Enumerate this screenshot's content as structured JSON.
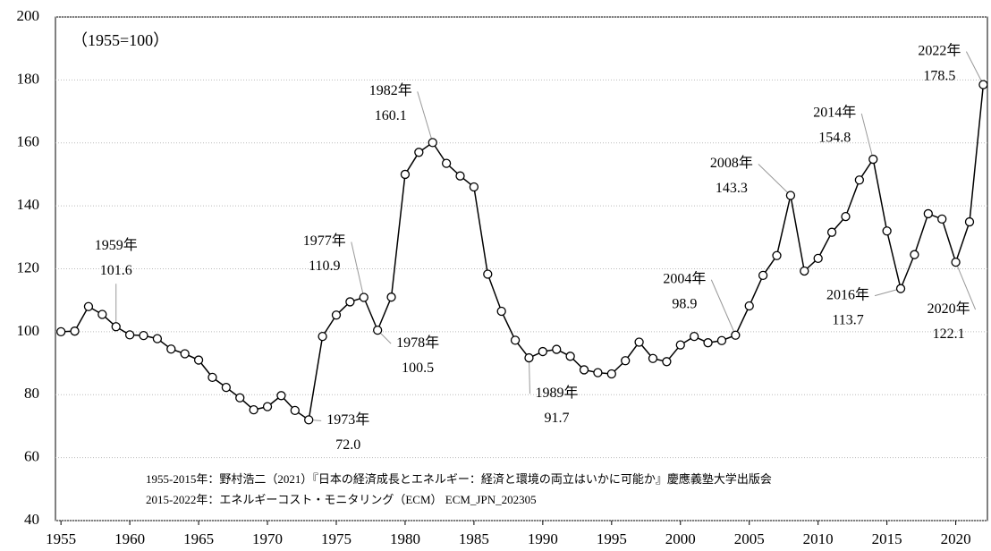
{
  "chart_data": {
    "type": "line",
    "subtitle": "（1955=100）",
    "notes": [
      "1955-2015年：野村浩二（2021）『日本の経済成長とエネルギー：経済と環境の両立はいかに可能か』慶應義塾大学出版会",
      "2015-2022年：エネルギーコスト・モニタリング（ECM） ECM_JPN_202305"
    ],
    "x": [
      1955,
      1956,
      1957,
      1958,
      1959,
      1960,
      1961,
      1962,
      1963,
      1964,
      1965,
      1966,
      1967,
      1968,
      1969,
      1970,
      1971,
      1972,
      1973,
      1974,
      1975,
      1976,
      1977,
      1978,
      1979,
      1980,
      1981,
      1982,
      1983,
      1984,
      1985,
      1986,
      1987,
      1988,
      1989,
      1990,
      1991,
      1992,
      1993,
      1994,
      1995,
      1996,
      1997,
      1998,
      1999,
      2000,
      2001,
      2002,
      2003,
      2004,
      2005,
      2006,
      2007,
      2008,
      2009,
      2010,
      2011,
      2012,
      2013,
      2014,
      2015,
      2016,
      2017,
      2018,
      2019,
      2020,
      2021,
      2022
    ],
    "values": [
      100,
      100.2,
      108,
      105.5,
      101.6,
      99,
      98.8,
      97.8,
      94.5,
      93,
      91,
      85.5,
      82.3,
      79,
      75.2,
      76.2,
      79.7,
      75,
      72.0,
      98.5,
      105.3,
      109.5,
      110.9,
      100.5,
      111,
      150,
      157,
      160.1,
      153.5,
      149.5,
      146,
      118.3,
      106.5,
      97.3,
      91.7,
      93.7,
      94.4,
      92.2,
      87.9,
      87,
      86.6,
      90.8,
      96.7,
      91.5,
      90.5,
      95.8,
      98.5,
      96.5,
      97.2,
      98.9,
      108.2,
      117.9,
      124.2,
      143.3,
      119.3,
      123.3,
      131.6,
      136.6,
      148.2,
      154.8,
      132,
      113.7,
      124.5,
      137.5,
      135.8,
      122.1,
      134.9,
      178.5
    ],
    "point_labels": [
      null,
      null,
      null,
      null,
      "1959年",
      null,
      null,
      null,
      null,
      null,
      null,
      null,
      null,
      null,
      null,
      null,
      null,
      null,
      "1973年",
      null,
      null,
      null,
      "1977年",
      "1978年",
      null,
      null,
      null,
      "1982年",
      null,
      null,
      null,
      null,
      null,
      null,
      "1989年",
      null,
      null,
      null,
      null,
      null,
      null,
      null,
      null,
      null,
      null,
      null,
      null,
      null,
      null,
      "2004年",
      null,
      null,
      null,
      "2008年",
      null,
      null,
      null,
      null,
      null,
      "2014年",
      null,
      "2016年",
      null,
      null,
      null,
      "2020年",
      null,
      "2022年"
    ],
    "value_labels": [
      null,
      null,
      null,
      null,
      "101.6",
      null,
      null,
      null,
      null,
      null,
      null,
      null,
      null,
      null,
      null,
      null,
      null,
      null,
      "72.0",
      null,
      null,
      null,
      "110.9",
      "100.5",
      null,
      null,
      null,
      "160.1",
      null,
      null,
      null,
      null,
      null,
      null,
      "91.7",
      null,
      null,
      null,
      null,
      null,
      null,
      null,
      null,
      null,
      null,
      null,
      null,
      null,
      null,
      "98.9",
      null,
      null,
      null,
      "143.3",
      null,
      null,
      null,
      null,
      null,
      "154.8",
      null,
      "113.7",
      null,
      null,
      null,
      "122.1",
      null,
      "178.5"
    ],
    "color": "#000000",
    "xlim": [
      1954.6,
      2022.3
    ],
    "xticks": [
      1955,
      1960,
      1965,
      1970,
      1975,
      1980,
      1985,
      1990,
      1995,
      2000,
      2005,
      2010,
      2015,
      2020
    ],
    "ylim": [
      40,
      200
    ],
    "yticks": [
      40,
      60,
      80,
      100,
      120,
      140,
      160,
      180,
      200
    ],
    "grid": true
  }
}
